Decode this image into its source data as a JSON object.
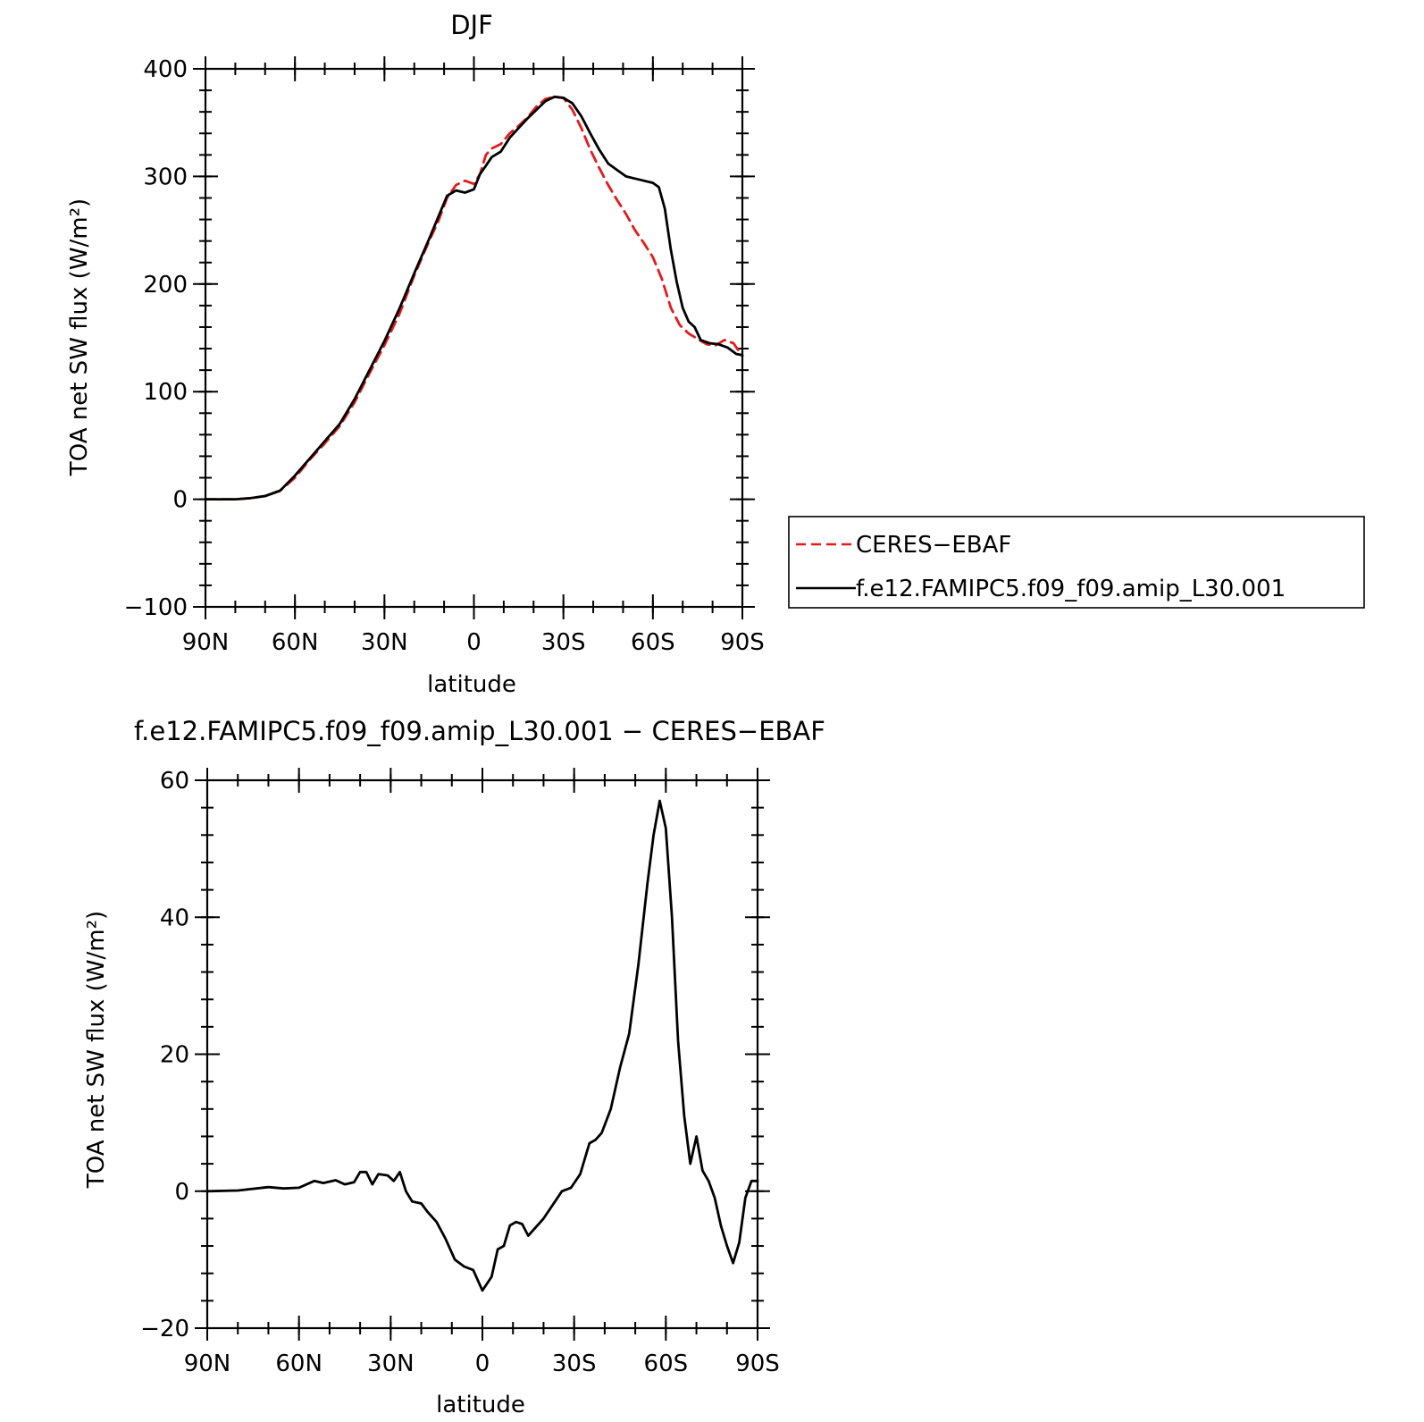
{
  "chart_data": [
    {
      "type": "line",
      "title": "DJF",
      "xlabel": "latitude",
      "ylabel": "TOA net SW flux (W/m²)",
      "xlim": [
        -90,
        90
      ],
      "ylim": [
        -100,
        400
      ],
      "x_ticks": [
        {
          "value": -90,
          "label": "90N"
        },
        {
          "value": -60,
          "label": "60N"
        },
        {
          "value": -30,
          "label": "30N"
        },
        {
          "value": 0,
          "label": "0"
        },
        {
          "value": 30,
          "label": "30S"
        },
        {
          "value": 60,
          "label": "60S"
        },
        {
          "value": 90,
          "label": "90S"
        }
      ],
      "y_ticks": [
        {
          "value": -100,
          "label": "−100"
        },
        {
          "value": 0,
          "label": "0"
        },
        {
          "value": 100,
          "label": "100"
        },
        {
          "value": 200,
          "label": "200"
        },
        {
          "value": 300,
          "label": "300"
        },
        {
          "value": 400,
          "label": "400"
        }
      ],
      "legend_position": "right",
      "series": [
        {
          "name": "CERES−EBAF",
          "color": "#e41a1c",
          "dash": "dashed",
          "points": [
            [
              -90,
              0
            ],
            [
              -80,
              0
            ],
            [
              -75,
              1
            ],
            [
              -70,
              3
            ],
            [
              -65,
              8
            ],
            [
              -60,
              20
            ],
            [
              -55,
              37
            ],
            [
              -50,
              52
            ],
            [
              -45,
              68
            ],
            [
              -40,
              90
            ],
            [
              -35,
              117
            ],
            [
              -30,
              143
            ],
            [
              -25,
              172
            ],
            [
              -20,
              208
            ],
            [
              -15,
              240
            ],
            [
              -12,
              258
            ],
            [
              -9,
              280
            ],
            [
              -6,
              292
            ],
            [
              -3,
              296
            ],
            [
              0,
              293
            ],
            [
              2,
              302
            ],
            [
              4,
              320
            ],
            [
              6,
              326
            ],
            [
              9,
              330
            ],
            [
              12,
              340
            ],
            [
              15,
              347
            ],
            [
              18,
              355
            ],
            [
              21,
              365
            ],
            [
              24,
              372
            ],
            [
              27,
              374
            ],
            [
              30,
              373
            ],
            [
              33,
              362
            ],
            [
              36,
              345
            ],
            [
              39,
              325
            ],
            [
              42,
              308
            ],
            [
              45,
              292
            ],
            [
              48,
              278
            ],
            [
              51,
              265
            ],
            [
              54,
              250
            ],
            [
              57,
              238
            ],
            [
              60,
              225
            ],
            [
              63,
              205
            ],
            [
              66,
              178
            ],
            [
              69,
              162
            ],
            [
              72,
              154
            ],
            [
              75,
              149
            ],
            [
              78,
              144
            ],
            [
              81,
              143
            ],
            [
              84,
              148
            ],
            [
              87,
              145
            ],
            [
              90,
              133
            ]
          ]
        },
        {
          "name": "f.e12.FAMIPC5.f09_f09.amip_L30.001",
          "color": "#000000",
          "dash": "solid",
          "points": [
            [
              -90,
              0
            ],
            [
              -80,
              0
            ],
            [
              -75,
              1
            ],
            [
              -70,
              3
            ],
            [
              -65,
              8
            ],
            [
              -60,
              22
            ],
            [
              -55,
              38
            ],
            [
              -50,
              54
            ],
            [
              -45,
              70
            ],
            [
              -40,
              93
            ],
            [
              -35,
              120
            ],
            [
              -30,
              147
            ],
            [
              -25,
              177
            ],
            [
              -20,
              210
            ],
            [
              -15,
              242
            ],
            [
              -12,
              262
            ],
            [
              -9,
              282
            ],
            [
              -6,
              287
            ],
            [
              -3,
              285
            ],
            [
              0,
              288
            ],
            [
              2,
              302
            ],
            [
              4,
              310
            ],
            [
              6,
              318
            ],
            [
              9,
              323
            ],
            [
              12,
              336
            ],
            [
              15,
              345
            ],
            [
              18,
              354
            ],
            [
              21,
              362
            ],
            [
              24,
              370
            ],
            [
              27,
              374
            ],
            [
              30,
              373
            ],
            [
              33,
              368
            ],
            [
              36,
              356
            ],
            [
              39,
              340
            ],
            [
              42,
              325
            ],
            [
              45,
              312
            ],
            [
              48,
              306
            ],
            [
              51,
              300
            ],
            [
              54,
              298
            ],
            [
              57,
              296
            ],
            [
              60,
              294
            ],
            [
              62,
              290
            ],
            [
              64,
              270
            ],
            [
              66,
              232
            ],
            [
              68,
              202
            ],
            [
              70,
              178
            ],
            [
              72,
              165
            ],
            [
              74,
              160
            ],
            [
              76,
              148
            ],
            [
              79,
              145
            ],
            [
              82,
              144
            ],
            [
              85,
              141
            ],
            [
              88,
              135
            ],
            [
              90,
              134
            ]
          ]
        }
      ]
    },
    {
      "type": "line",
      "title": "f.e12.FAMIPC5.f09_f09.amip_L30.001 − CERES−EBAF",
      "xlabel": "latitude",
      "ylabel": "TOA net SW flux (W/m²)",
      "xlim": [
        -90,
        90
      ],
      "ylim": [
        -20,
        60
      ],
      "x_ticks": [
        {
          "value": -90,
          "label": "90N"
        },
        {
          "value": -60,
          "label": "60N"
        },
        {
          "value": -30,
          "label": "30N"
        },
        {
          "value": 0,
          "label": "0"
        },
        {
          "value": 30,
          "label": "30S"
        },
        {
          "value": 60,
          "label": "60S"
        },
        {
          "value": 90,
          "label": "90S"
        }
      ],
      "y_ticks": [
        {
          "value": -20,
          "label": "−20"
        },
        {
          "value": 0,
          "label": "0"
        },
        {
          "value": 20,
          "label": "20"
        },
        {
          "value": 40,
          "label": "40"
        },
        {
          "value": 60,
          "label": "60"
        }
      ],
      "series": [
        {
          "color": "#000000",
          "dash": "solid",
          "points": [
            [
              -90,
              0
            ],
            [
              -80,
              0.1
            ],
            [
              -70,
              0.6
            ],
            [
              -65,
              0.4
            ],
            [
              -60,
              0.5
            ],
            [
              -55,
              1.5
            ],
            [
              -52,
              1.2
            ],
            [
              -48,
              1.6
            ],
            [
              -45,
              1.0
            ],
            [
              -42,
              1.3
            ],
            [
              -40,
              2.8
            ],
            [
              -38,
              2.8
            ],
            [
              -36,
              1.0
            ],
            [
              -34,
              2.5
            ],
            [
              -31,
              2.3
            ],
            [
              -29,
              1.5
            ],
            [
              -27,
              2.8
            ],
            [
              -25,
              0
            ],
            [
              -23,
              -1.5
            ],
            [
              -20,
              -1.8
            ],
            [
              -18,
              -3.0
            ],
            [
              -15,
              -4.5
            ],
            [
              -12,
              -7
            ],
            [
              -9,
              -10
            ],
            [
              -6,
              -11
            ],
            [
              -3,
              -11.5
            ],
            [
              0,
              -14.5
            ],
            [
              3,
              -12.5
            ],
            [
              5,
              -8.5
            ],
            [
              7,
              -8
            ],
            [
              9,
              -5
            ],
            [
              11,
              -4.5
            ],
            [
              13,
              -4.8
            ],
            [
              15,
              -6.5
            ],
            [
              18,
              -5
            ],
            [
              20,
              -4
            ],
            [
              23,
              -2
            ],
            [
              26,
              0
            ],
            [
              29,
              0.5
            ],
            [
              32,
              2.5
            ],
            [
              35,
              7
            ],
            [
              37,
              7.5
            ],
            [
              39,
              8.5
            ],
            [
              42,
              12
            ],
            [
              45,
              18
            ],
            [
              48,
              23
            ],
            [
              51,
              33
            ],
            [
              54,
              45
            ],
            [
              56,
              52
            ],
            [
              58,
              57
            ],
            [
              60,
              53
            ],
            [
              62,
              40
            ],
            [
              64,
              22
            ],
            [
              66,
              11
            ],
            [
              68,
              4
            ],
            [
              70,
              8
            ],
            [
              72,
              3
            ],
            [
              74,
              1.5
            ],
            [
              76,
              -1
            ],
            [
              78,
              -5
            ],
            [
              80,
              -8
            ],
            [
              82,
              -10.5
            ],
            [
              84,
              -7.5
            ],
            [
              86,
              -1
            ],
            [
              88,
              1.5
            ],
            [
              90,
              1.5
            ]
          ]
        }
      ]
    }
  ]
}
